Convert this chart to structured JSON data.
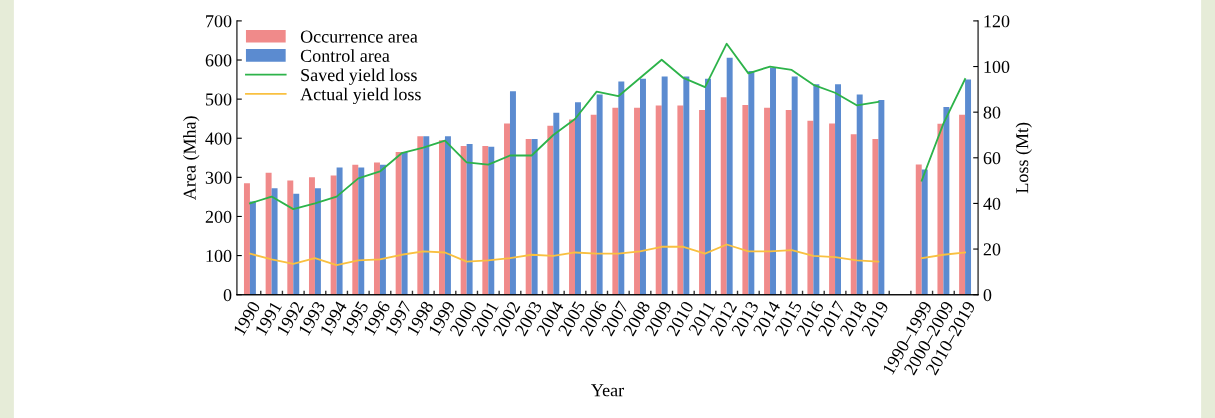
{
  "chart_data": {
    "type": "bar",
    "xlabel": "Year",
    "ylabel": "Area (Mha)",
    "y2label": "Loss (Mt)",
    "categories": [
      "1990",
      "1991",
      "1992",
      "1993",
      "1994",
      "1995",
      "1996",
      "1997",
      "1998",
      "1999",
      "2000",
      "2001",
      "2002",
      "2003",
      "2004",
      "2005",
      "2006",
      "2007",
      "2008",
      "2009",
      "2010",
      "2011",
      "2012",
      "2013",
      "2014",
      "2015",
      "2016",
      "2017",
      "2018",
      "2019",
      null,
      "1990–1999",
      "2000–2009",
      "2010–2019"
    ],
    "series": [
      {
        "name": "Occurrence area",
        "color": "#f08a8a",
        "values": [
          285,
          312,
          292,
          300,
          305,
          332,
          338,
          365,
          405,
          395,
          380,
          380,
          438,
          398,
          432,
          448,
          460,
          478,
          478,
          484,
          484,
          472,
          505,
          485,
          478,
          472,
          445,
          438,
          410,
          398,
          null,
          333,
          437,
          460
        ]
      },
      {
        "name": "Control area",
        "color": "#5b8bd0",
        "values": [
          238,
          272,
          258,
          272,
          325,
          325,
          332,
          365,
          405,
          405,
          385,
          378,
          520,
          398,
          465,
          492,
          512,
          545,
          552,
          558,
          558,
          552,
          606,
          572,
          580,
          558,
          538,
          538,
          512,
          498,
          null,
          320,
          480,
          550
        ]
      },
      {
        "name": "Saved yield loss",
        "type": "line",
        "axis": "y2",
        "color": "#2db34a",
        "values": [
          40,
          43,
          37.5,
          40,
          43,
          51,
          54,
          62,
          64.5,
          67.5,
          58,
          57,
          61,
          61,
          70,
          77,
          89,
          87,
          95,
          103,
          95,
          91,
          110,
          97,
          100,
          98.5,
          92,
          88.5,
          83,
          84.5,
          null,
          50,
          75,
          94.5
        ]
      },
      {
        "name": "Actual yield loss",
        "type": "line",
        "axis": "y2",
        "color": "#f9c040",
        "values": [
          18,
          15.5,
          13.5,
          16,
          13,
          15,
          15.5,
          17.5,
          19,
          18.5,
          14.5,
          15,
          16,
          17.5,
          17,
          18.5,
          18,
          18,
          19,
          21,
          21,
          18,
          22,
          19,
          19,
          19.5,
          17,
          16.5,
          15,
          14.5,
          null,
          16,
          17.5,
          18.5
        ]
      }
    ],
    "ylim": [
      0,
      700
    ],
    "yticks": [
      0,
      100,
      200,
      300,
      400,
      500,
      600,
      700
    ],
    "y2lim": [
      0,
      120
    ],
    "y2ticks": [
      0,
      20,
      40,
      60,
      80,
      100,
      120
    ],
    "legend": "top left",
    "grid": false
  }
}
